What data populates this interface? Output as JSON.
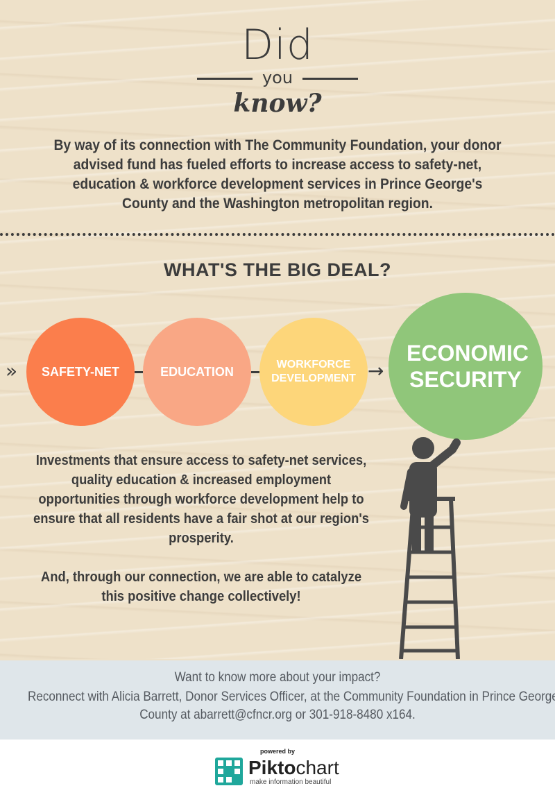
{
  "header": {
    "did": "Did",
    "you": "you",
    "know": "know?"
  },
  "intro": "By way of its connection with The Community Foundation, your donor advised fund has fueled efforts to increase access to safety-net, education & workforce development services in Prince George's County and the Washington metropolitan region.",
  "section_title": "WHAT'S THE BIG DEAL?",
  "circles": [
    {
      "label": "SAFETY-NET",
      "color": "#fb7e4c"
    },
    {
      "label": "EDUCATION",
      "color": "#f9a785"
    },
    {
      "label": "WORKFORCE DEVELOPMENT",
      "color": "#fdd67a"
    },
    {
      "label": "ECONOMIC SECURITY",
      "color": "#90c67a"
    }
  ],
  "body": {
    "p1": "Investments that ensure access to safety-net services, quality education & increased employment opportunities through workforce development help to ensure that all residents have a fair shot at our region's prosperity.",
    "p2": "And, through our connection, we are able to catalyze this positive change collectively!"
  },
  "footer": {
    "line1": "Want to know more about your impact?",
    "line2": "Reconnect with Alicia Barrett, Donor Services Officer, at the Community Foundation in Prince George's",
    "line3": "County at abarrett@cfncr.org or 301-918-8480 x164."
  },
  "brand": {
    "powered": "powered by",
    "name_a": "Pikto",
    "name_b": "chart",
    "tagline": "make information beautiful"
  },
  "colors": {
    "background": "#eee1c9",
    "text": "#3c3c3c",
    "footer_bg": "#dfe6ea"
  },
  "icons": [
    "double-chevron-right-icon",
    "arrow-right-icon",
    "person-on-ladder-icon",
    "piktochart-logo-icon"
  ]
}
